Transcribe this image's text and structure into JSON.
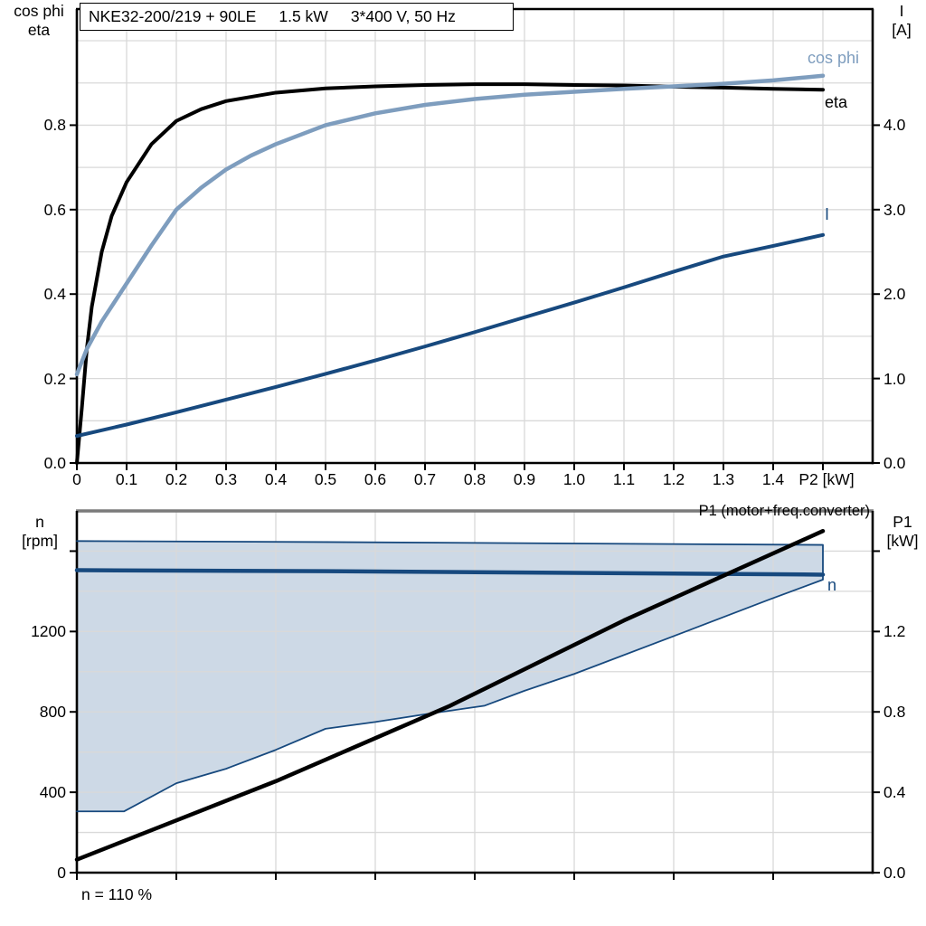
{
  "title_box": {
    "segments": [
      "NKE32-200/219 + 90LE",
      "1.5 kW",
      "3*400 V, 50 Hz"
    ]
  },
  "annotations": {
    "p1_curve_note": "P1 (motor+freq.converter)",
    "speed_note": "n = 110 %"
  },
  "colors": {
    "black": "#000000",
    "dark_blue": "#17497E",
    "light_blue": "#7E9DBE",
    "envelope_fill": "#CDD9E6",
    "grid": "#D9D9D9",
    "gray_border": "#7A7A7A",
    "axis": "#000000"
  },
  "chart_data": [
    {
      "name": "upper-chart",
      "type": "line",
      "title": "NKE32-200/219 + 90LE  1.5 kW  3*400 V, 50 Hz",
      "x_axis": {
        "label": "P2 [kW]",
        "min": 0,
        "max": 1.6,
        "grid_step": 0.1,
        "grid_max": 1.5,
        "ticks": [
          {
            "v": 0,
            "t": "0"
          },
          {
            "v": 0.1,
            "t": "0.1"
          },
          {
            "v": 0.2,
            "t": "0.2"
          },
          {
            "v": 0.3,
            "t": "0.3"
          },
          {
            "v": 0.4,
            "t": "0.4"
          },
          {
            "v": 0.5,
            "t": "0.5"
          },
          {
            "v": 0.6,
            "t": "0.6"
          },
          {
            "v": 0.7,
            "t": "0.7"
          },
          {
            "v": 0.8,
            "t": "0.8"
          },
          {
            "v": 0.9,
            "t": "0.9"
          },
          {
            "v": 1.0,
            "t": "1.0"
          },
          {
            "v": 1.1,
            "t": "1.1"
          },
          {
            "v": 1.2,
            "t": "1.2"
          },
          {
            "v": 1.3,
            "t": "1.3"
          },
          {
            "v": 1.4,
            "t": "1.4"
          },
          {
            "v": 1.5,
            "t": ""
          }
        ]
      },
      "y_left": {
        "header": [
          "cos phi",
          "eta"
        ],
        "min": 0,
        "max": 1.075,
        "grid_step": 0.1,
        "grid_max": 1.0,
        "ticks": [
          {
            "v": 0.0,
            "t": "0.0"
          },
          {
            "v": 0.2,
            "t": "0.2"
          },
          {
            "v": 0.4,
            "t": "0.4"
          },
          {
            "v": 0.6,
            "t": "0.6"
          },
          {
            "v": 0.8,
            "t": "0.8"
          }
        ]
      },
      "y_right": {
        "header": [
          "I",
          "[A]"
        ],
        "min": 0,
        "max": 5.375,
        "ticks": [
          {
            "v": 0.0,
            "t": "0.0"
          },
          {
            "v": 1.0,
            "t": "1.0"
          },
          {
            "v": 2.0,
            "t": "2.0"
          },
          {
            "v": 3.0,
            "t": "3.0"
          },
          {
            "v": 4.0,
            "t": "4.0"
          }
        ]
      },
      "series": [
        {
          "key": "eta",
          "label": "eta",
          "axis": "left",
          "color": "#000000",
          "width": 4,
          "points": [
            [
              0,
              0
            ],
            [
              0.01,
              0.13
            ],
            [
              0.02,
              0.27
            ],
            [
              0.03,
              0.37
            ],
            [
              0.05,
              0.5
            ],
            [
              0.07,
              0.585
            ],
            [
              0.1,
              0.665
            ],
            [
              0.15,
              0.755
            ],
            [
              0.2,
              0.81
            ],
            [
              0.25,
              0.838
            ],
            [
              0.3,
              0.857
            ],
            [
              0.4,
              0.877
            ],
            [
              0.5,
              0.887
            ],
            [
              0.6,
              0.892
            ],
            [
              0.7,
              0.895
            ],
            [
              0.8,
              0.897
            ],
            [
              0.9,
              0.897
            ],
            [
              1.0,
              0.895
            ],
            [
              1.1,
              0.894
            ],
            [
              1.2,
              0.891
            ],
            [
              1.3,
              0.889
            ],
            [
              1.4,
              0.886
            ],
            [
              1.5,
              0.884
            ]
          ]
        },
        {
          "key": "cos-phi",
          "label": "cos phi",
          "axis": "left",
          "color": "#7E9DBE",
          "width": 4.5,
          "points": [
            [
              0,
              0.21
            ],
            [
              0.02,
              0.27
            ],
            [
              0.05,
              0.335
            ],
            [
              0.1,
              0.425
            ],
            [
              0.15,
              0.515
            ],
            [
              0.2,
              0.6
            ],
            [
              0.25,
              0.652
            ],
            [
              0.3,
              0.695
            ],
            [
              0.35,
              0.728
            ],
            [
              0.4,
              0.755
            ],
            [
              0.5,
              0.8
            ],
            [
              0.6,
              0.828
            ],
            [
              0.7,
              0.848
            ],
            [
              0.8,
              0.862
            ],
            [
              0.9,
              0.872
            ],
            [
              1.0,
              0.879
            ],
            [
              1.1,
              0.886
            ],
            [
              1.2,
              0.892
            ],
            [
              1.3,
              0.898
            ],
            [
              1.4,
              0.906
            ],
            [
              1.5,
              0.917
            ]
          ]
        },
        {
          "key": "current",
          "label": "I",
          "axis": "right",
          "color": "#17497E",
          "width": 4,
          "points": [
            [
              0,
              0.32
            ],
            [
              0.1,
              0.455
            ],
            [
              0.2,
              0.6
            ],
            [
              0.3,
              0.75
            ],
            [
              0.4,
              0.9
            ],
            [
              0.5,
              1.055
            ],
            [
              0.6,
              1.215
            ],
            [
              0.7,
              1.38
            ],
            [
              0.8,
              1.55
            ],
            [
              0.9,
              1.725
            ],
            [
              1.0,
              1.9
            ],
            [
              1.1,
              2.08
            ],
            [
              1.2,
              2.265
            ],
            [
              1.3,
              2.445
            ],
            [
              1.4,
              2.57
            ],
            [
              1.5,
              2.7
            ]
          ]
        }
      ]
    },
    {
      "name": "lower-chart",
      "type": "line",
      "title": "Speed and input power vs P2",
      "x_axis": {
        "label": "",
        "min": 0,
        "max": 1.6,
        "grid_step": 0.2,
        "grid_max": 1.4,
        "ticks": [
          {
            "v": 0,
            "t": ""
          },
          {
            "v": 0.2,
            "t": ""
          },
          {
            "v": 0.4,
            "t": ""
          },
          {
            "v": 0.6,
            "t": ""
          },
          {
            "v": 0.8,
            "t": ""
          },
          {
            "v": 1.0,
            "t": ""
          },
          {
            "v": 1.2,
            "t": ""
          },
          {
            "v": 1.4,
            "t": ""
          }
        ]
      },
      "y_left": {
        "header": [
          "n",
          "[rpm]"
        ],
        "min": 0,
        "max": 1800,
        "grid_step": 200,
        "grid_max": 1600,
        "ticks": [
          {
            "v": 0,
            "t": "0"
          },
          {
            "v": 400,
            "t": "400"
          },
          {
            "v": 800,
            "t": "800"
          },
          {
            "v": 1200,
            "t": "1200"
          },
          {
            "v": 1600,
            "t": ""
          }
        ]
      },
      "y_right": {
        "header": [
          "P1",
          "[kW]"
        ],
        "min": 0,
        "max": 1.8,
        "ticks": [
          {
            "v": 0.0,
            "t": "0.0"
          },
          {
            "v": 0.4,
            "t": "0.4"
          },
          {
            "v": 0.8,
            "t": "0.8"
          },
          {
            "v": 1.2,
            "t": "1.2"
          },
          {
            "v": 1.6,
            "t": ""
          }
        ]
      },
      "series": [
        {
          "key": "operating-envelope",
          "label": "",
          "axis": "left",
          "type": "area",
          "fill": "#CDD9E6",
          "color": "#17497E",
          "width": 1.8,
          "points": [
            [
              0,
              1650
            ],
            [
              0.5,
              1645
            ],
            [
              1.0,
              1638
            ],
            [
              1.5,
              1631
            ],
            [
              1.5,
              1458
            ],
            [
              1.39,
              1357
            ],
            [
              1.2,
              1177
            ],
            [
              1.0,
              989
            ],
            [
              0.9,
              905
            ],
            [
              0.82,
              831
            ],
            [
              0.7,
              788
            ],
            [
              0.6,
              750
            ],
            [
              0.5,
              716
            ],
            [
              0.4,
              611
            ],
            [
              0.3,
              517
            ],
            [
              0.2,
              445
            ],
            [
              0.095,
              305
            ],
            [
              0,
              305
            ]
          ]
        },
        {
          "key": "speed",
          "label": "n",
          "axis": "left",
          "color": "#17497E",
          "width": 4.5,
          "points": [
            [
              0,
              1505
            ],
            [
              0.5,
              1500
            ],
            [
              1.0,
              1492
            ],
            [
              1.5,
              1483
            ]
          ]
        },
        {
          "key": "input-power",
          "label": "",
          "axis": "right",
          "color": "#000000",
          "width": 4.5,
          "points": [
            [
              0,
              0.065
            ],
            [
              0.4,
              0.455
            ],
            [
              0.75,
              0.83
            ],
            [
              1.1,
              1.255
            ],
            [
              1.5,
              1.7
            ]
          ]
        }
      ]
    }
  ]
}
